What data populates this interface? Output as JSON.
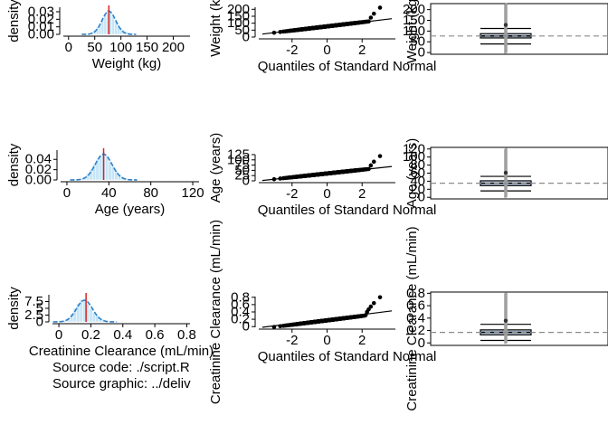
{
  "colors": {
    "hist_fill": "#c6e6f7",
    "hist_stroke": "#ffffff",
    "density_line": "#2e7fc8",
    "reference_line": "#e0201c",
    "qq_points": "#000000",
    "qq_line": "#000000",
    "box_fill": "#c8d9ee",
    "box_points": "#a0a0a0",
    "mean_line": "#8a8a8a",
    "panel_border": "#000000"
  },
  "chart_data": [
    {
      "panel": "weight-histogram",
      "type": "bar",
      "xlabel": "Weight (kg)",
      "ylabel": "density",
      "xlim": [
        -10,
        232
      ],
      "ylim": [
        0,
        0.036
      ],
      "x_ticks": [
        0,
        50,
        100,
        150,
        200
      ],
      "y_ticks": [
        0.0,
        0.01,
        0.02,
        0.03
      ],
      "y_tick_labels": [
        "0.00",
        "0.01",
        "0.02",
        "0.03"
      ],
      "bin_width": 5,
      "bins_x": [
        35,
        40,
        45,
        50,
        55,
        60,
        65,
        70,
        75,
        80,
        85,
        90,
        95,
        100,
        105,
        110,
        115,
        120,
        125,
        130,
        140,
        150,
        160,
        170,
        180,
        190,
        200,
        210,
        220
      ],
      "bins_y": [
        0.0008,
        0.0018,
        0.0035,
        0.006,
        0.01,
        0.015,
        0.021,
        0.026,
        0.0325,
        0.031,
        0.024,
        0.018,
        0.013,
        0.009,
        0.006,
        0.004,
        0.0028,
        0.0019,
        0.0013,
        0.0009,
        0.0005,
        0.0003,
        0.0002,
        0.0002,
        0.0001,
        0.0001,
        0.0001,
        0.0001,
        0.0001
      ],
      "density": {
        "mean": 77,
        "sd": 13
      },
      "reference_x": 77
    },
    {
      "panel": "weight-qqplot",
      "type": "scatter",
      "xlabel": "Quantiles of Standard Normal",
      "ylabel": "Weight (kg)",
      "xlim": [
        -3.9,
        3.9
      ],
      "ylim": [
        0,
        215
      ],
      "x_ticks": [
        -2,
        0,
        2
      ],
      "y_ticks": [
        0,
        50,
        100,
        150,
        200
      ],
      "sample": {
        "mean": 77,
        "sd": 15,
        "tail_start": 2.4,
        "tail_end_value": 212
      },
      "reference_line": {
        "intercept": 77,
        "slope": 15
      }
    },
    {
      "panel": "weight-boxplot",
      "type": "box",
      "ylabel": "Weight (kg)",
      "ylim": [
        -8,
        228
      ],
      "y_ticks": [
        0,
        50,
        100,
        150,
        200
      ],
      "box": {
        "whisker_low": 40,
        "q1": 68,
        "median": 77,
        "q3": 88,
        "whisker_high": 112,
        "mean": 77,
        "min": 0,
        "max": 225
      }
    },
    {
      "panel": "age-histogram",
      "type": "bar",
      "xlabel": "Age (years)",
      "ylabel": "density",
      "xlim": [
        -6,
        126
      ],
      "ylim": [
        0,
        0.058
      ],
      "x_ticks": [
        0,
        40,
        80,
        120
      ],
      "y_ticks": [
        0.0,
        0.02,
        0.04
      ],
      "y_tick_labels": [
        "0.00",
        "0.02",
        "0.04"
      ],
      "bin_width": 3,
      "bins_x": [
        14,
        17,
        20,
        23,
        26,
        29,
        32,
        35,
        38,
        41,
        44,
        47,
        50,
        53,
        56,
        60,
        65,
        70,
        80,
        90,
        100,
        110,
        118
      ],
      "bins_y": [
        0.002,
        0.006,
        0.012,
        0.02,
        0.03,
        0.04,
        0.048,
        0.054,
        0.046,
        0.036,
        0.026,
        0.018,
        0.011,
        0.007,
        0.004,
        0.002,
        0.0015,
        0.001,
        0.0006,
        0.0004,
        0.0003,
        0.0002,
        0.0002
      ],
      "density": {
        "mean": 35,
        "sd": 8
      },
      "reference_x": 35
    },
    {
      "panel": "age-qqplot",
      "type": "scatter",
      "xlabel": "Quantiles of Standard Normal",
      "ylabel": "Age (years)",
      "xlim": [
        -3.9,
        3.9
      ],
      "ylim": [
        0,
        125
      ],
      "x_ticks": [
        -2,
        0,
        2
      ],
      "y_ticks": [
        0,
        25,
        50,
        75,
        100,
        125
      ],
      "sample": {
        "mean": 35,
        "sd": 9,
        "tail_start": 2.4,
        "tail_end_value": 118
      },
      "reference_line": {
        "intercept": 35,
        "slope": 9
      }
    },
    {
      "panel": "age-boxplot",
      "type": "box",
      "ylabel": "Age (years)",
      "ylim": [
        -4,
        124
      ],
      "y_ticks": [
        0,
        20,
        40,
        60,
        80,
        100,
        120
      ],
      "box": {
        "whisker_low": 16,
        "q1": 29,
        "median": 35,
        "q3": 41,
        "whisker_high": 52,
        "mean": 35,
        "min": 1,
        "max": 120
      }
    },
    {
      "panel": "crcl-histogram",
      "type": "bar",
      "xlabel": "Creatinine Clearance (mL/min)",
      "ylabel": "density",
      "xlim": [
        -0.04,
        0.82
      ],
      "ylim": [
        0,
        10
      ],
      "x_ticks": [
        0.0,
        0.2,
        0.4,
        0.6,
        0.8
      ],
      "y_ticks": [
        0.0,
        2.5,
        5.0,
        7.5
      ],
      "bin_width": 0.02,
      "bins_x": [
        0.04,
        0.06,
        0.08,
        0.1,
        0.12,
        0.14,
        0.16,
        0.18,
        0.2,
        0.22,
        0.24,
        0.26,
        0.28,
        0.3,
        0.33,
        0.36,
        0.4,
        0.45,
        0.5,
        0.55,
        0.6,
        0.65,
        0.7,
        0.75,
        0.79
      ],
      "bins_y": [
        0.5,
        1.4,
        3.0,
        5.0,
        6.8,
        8.2,
        7.9,
        6.5,
        4.9,
        3.4,
        2.2,
        1.4,
        0.9,
        0.6,
        0.4,
        0.3,
        0.2,
        0.15,
        0.1,
        0.08,
        0.06,
        0.05,
        0.04,
        0.04,
        0.03
      ],
      "density": {
        "mean": 0.16,
        "sd": 0.05
      },
      "reference_x": 0.17
    },
    {
      "panel": "crcl-qqplot",
      "type": "scatter",
      "xlabel": "Quantiles of Standard Normal",
      "ylabel": "Creatinine Clearance (mL/min)",
      "xlim": [
        -3.9,
        3.9
      ],
      "ylim": [
        -0.02,
        0.82
      ],
      "x_ticks": [
        -2,
        0,
        2
      ],
      "y_ticks": [
        0.0,
        0.2,
        0.4,
        0.6,
        0.8
      ],
      "sample": {
        "mean": 0.17,
        "sd": 0.06,
        "tail_start": 2.2,
        "tail_end_value": 0.8
      },
      "reference_line": {
        "intercept": 0.17,
        "slope": 0.07
      }
    },
    {
      "panel": "crcl-boxplot",
      "type": "box",
      "ylabel": "Creatinine Clearance (mL/min)",
      "ylim": [
        -0.04,
        0.82
      ],
      "y_ticks": [
        0.0,
        0.2,
        0.4,
        0.6,
        0.8
      ],
      "box": {
        "whisker_low": 0.04,
        "q1": 0.13,
        "median": 0.17,
        "q3": 0.21,
        "whisker_high": 0.3,
        "mean": 0.17,
        "min": 0.0,
        "max": 0.8
      }
    }
  ],
  "captions": {
    "source_code": "Source code: ./script.R",
    "source_graphic": "Source graphic: ../deliv"
  }
}
